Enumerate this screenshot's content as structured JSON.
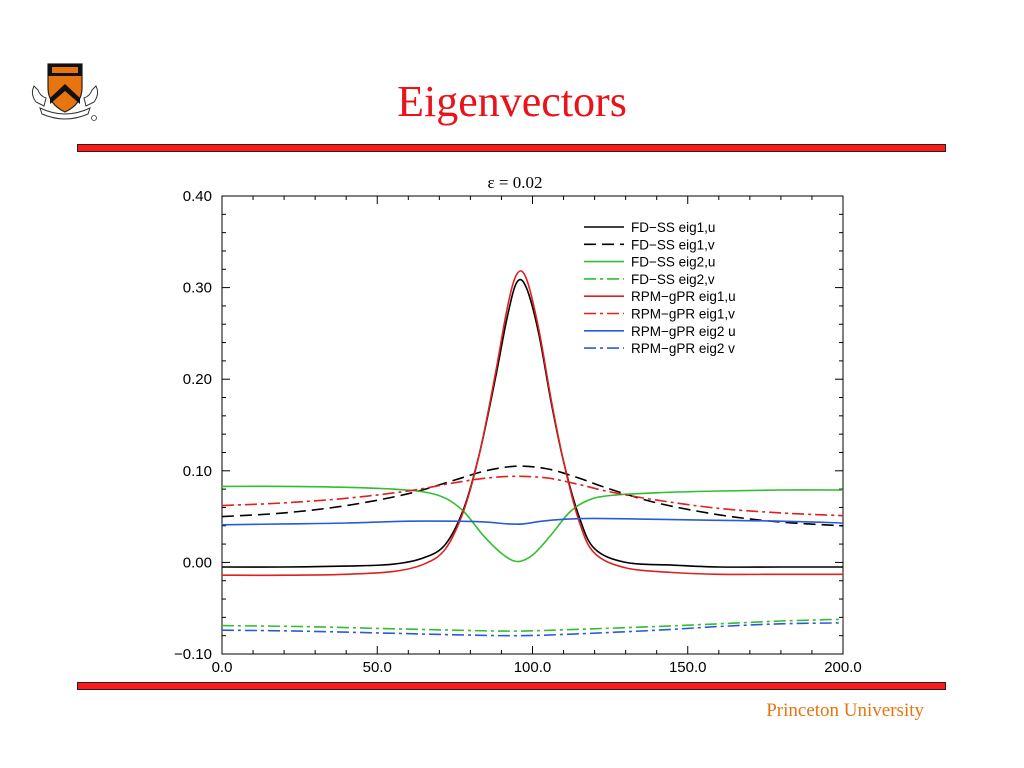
{
  "slide": {
    "title": "Eigenvectors",
    "footer": "Princeton University"
  },
  "colors": {
    "title": "#e8141a",
    "rule": "#ff1a1a",
    "footer": "#e8740f"
  },
  "chart_data": {
    "type": "line",
    "title": "ε = 0.02",
    "xlabel": "",
    "ylabel": "",
    "xlim": [
      0,
      200
    ],
    "ylim": [
      -0.1,
      0.4
    ],
    "xticks": [
      "0.0",
      "50.0",
      "100.0",
      "150.0",
      "200.0"
    ],
    "yticks": [
      "−0.10",
      "0.00",
      "0.10",
      "0.20",
      "0.30",
      "0.40"
    ],
    "grid": false,
    "legend": "top-right",
    "series": [
      {
        "name": "FD−SS eig1,u",
        "color": "#000000",
        "dash": "",
        "x": [
          0,
          20,
          40,
          55,
          65,
          72,
          78,
          83,
          88,
          92,
          95,
          98,
          102,
          106,
          110,
          115,
          120,
          130,
          145,
          160,
          180,
          200
        ],
        "y": [
          -0.005,
          -0.005,
          -0.004,
          -0.002,
          0.005,
          0.02,
          0.06,
          0.12,
          0.2,
          0.27,
          0.306,
          0.3,
          0.25,
          0.175,
          0.11,
          0.05,
          0.015,
          0.0,
          -0.003,
          -0.005,
          -0.005,
          -0.005
        ]
      },
      {
        "name": "FD−SS eig1,v",
        "color": "#000000",
        "dash": "12,6",
        "x": [
          0,
          20,
          40,
          60,
          75,
          85,
          95,
          105,
          115,
          125,
          140,
          160,
          180,
          200
        ],
        "y": [
          0.05,
          0.054,
          0.062,
          0.075,
          0.09,
          0.1,
          0.105,
          0.102,
          0.092,
          0.08,
          0.065,
          0.052,
          0.044,
          0.04
        ]
      },
      {
        "name": "FD−SS eig2,u",
        "color": "#2fbf2f",
        "dash": "",
        "x": [
          0,
          20,
          40,
          55,
          65,
          72,
          78,
          84,
          90,
          95,
          100,
          106,
          112,
          118,
          125,
          140,
          160,
          180,
          200
        ],
        "y": [
          0.083,
          0.083,
          0.082,
          0.08,
          0.077,
          0.07,
          0.055,
          0.03,
          0.01,
          0.001,
          0.008,
          0.03,
          0.055,
          0.068,
          0.073,
          0.076,
          0.078,
          0.079,
          0.079
        ]
      },
      {
        "name": "FD−SS eig2,v",
        "color": "#2fbf2f",
        "dash": "12,4,3,4",
        "x": [
          0,
          25,
          50,
          75,
          95,
          115,
          140,
          160,
          180,
          200
        ],
        "y": [
          -0.069,
          -0.07,
          -0.072,
          -0.074,
          -0.075,
          -0.073,
          -0.07,
          -0.067,
          -0.064,
          -0.062
        ]
      },
      {
        "name": "RPM−gPR eig1,u",
        "color": "#e02020",
        "dash": "",
        "x": [
          0,
          20,
          40,
          55,
          65,
          72,
          78,
          83,
          88,
          92,
          95,
          98,
          102,
          106,
          110,
          115,
          120,
          130,
          145,
          160,
          180,
          200
        ],
        "y": [
          -0.014,
          -0.014,
          -0.013,
          -0.01,
          -0.002,
          0.015,
          0.058,
          0.12,
          0.205,
          0.28,
          0.315,
          0.31,
          0.255,
          0.178,
          0.11,
          0.045,
          0.01,
          -0.006,
          -0.011,
          -0.013,
          -0.013,
          -0.013
        ]
      },
      {
        "name": "RPM−gPR eig1,v",
        "color": "#e02020",
        "dash": "12,4,3,4",
        "x": [
          0,
          20,
          40,
          60,
          75,
          85,
          95,
          105,
          115,
          125,
          140,
          160,
          180,
          200
        ],
        "y": [
          0.062,
          0.065,
          0.07,
          0.078,
          0.087,
          0.092,
          0.094,
          0.092,
          0.085,
          0.077,
          0.068,
          0.059,
          0.054,
          0.051
        ]
      },
      {
        "name": "RPM−gPR eig2 u",
        "color": "#2a5bd7",
        "dash": "",
        "x": [
          0,
          20,
          40,
          60,
          75,
          85,
          92,
          97,
          103,
          110,
          120,
          140,
          160,
          180,
          200
        ],
        "y": [
          0.041,
          0.042,
          0.043,
          0.045,
          0.045,
          0.044,
          0.042,
          0.042,
          0.045,
          0.047,
          0.048,
          0.047,
          0.046,
          0.045,
          0.043
        ]
      },
      {
        "name": "RPM−gPR eig2 v",
        "color": "#2a5bd7",
        "dash": "12,4,3,4",
        "x": [
          0,
          25,
          50,
          75,
          95,
          115,
          140,
          160,
          180,
          200
        ],
        "y": [
          -0.074,
          -0.075,
          -0.077,
          -0.079,
          -0.08,
          -0.078,
          -0.074,
          -0.07,
          -0.067,
          -0.066
        ]
      }
    ]
  }
}
